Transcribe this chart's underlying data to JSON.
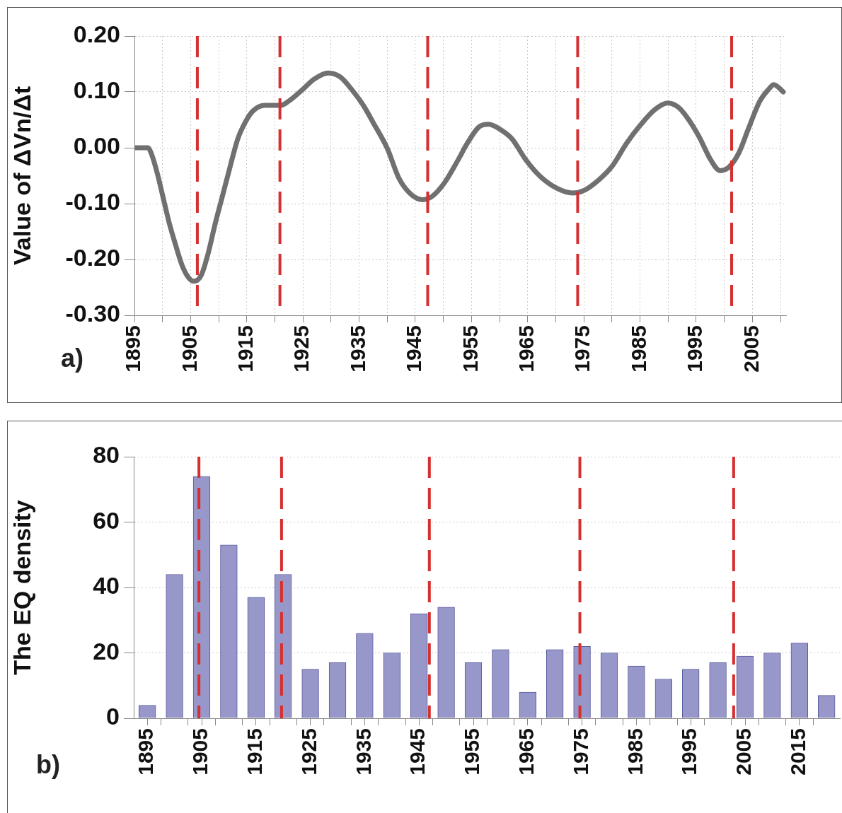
{
  "chart_data": [
    {
      "type": "line",
      "ylabel": "Value of ΔVn/Δt",
      "annotations": [
        "a)"
      ],
      "color": "#707070",
      "grid": true,
      "x": [
        1895,
        1897.4,
        1898.1,
        1899.1,
        1900.1,
        1901.2,
        1902.3,
        1903.5,
        1904.6,
        1905.6,
        1906.9,
        1908.1,
        1909.4,
        1910.6,
        1911.9,
        1913.4,
        1914.8,
        1916.1,
        1918.2,
        1921.1,
        1922.4,
        1924.9,
        1927,
        1929.5,
        1931.6,
        1933.7,
        1935.8,
        1937.5,
        1940,
        1942.1,
        1944.2,
        1946.3,
        1948,
        1950.1,
        1952.6,
        1954.25,
        1956.3,
        1958,
        1960.1,
        1962.2,
        1964.7,
        1967.2,
        1970.1,
        1973,
        1975.1,
        1977.6,
        1980.1,
        1982.6,
        1985.1,
        1987.6,
        1989.9,
        1991.75,
        1993.4,
        1995.5,
        1997.6,
        1999.25,
        2000.9,
        2002.6,
        2004.25,
        2006.3,
        2008,
        2008.8,
        2010.5
      ],
      "values": [
        0,
        0,
        -0.013,
        -0.047,
        -0.089,
        -0.135,
        -0.173,
        -0.211,
        -0.232,
        -0.239,
        -0.228,
        -0.19,
        -0.135,
        -0.089,
        -0.039,
        0.016,
        0.047,
        0.066,
        0.076,
        0.076,
        0.083,
        0.104,
        0.123,
        0.134,
        0.127,
        0.104,
        0.075,
        0.045,
        -0.001,
        -0.055,
        -0.083,
        -0.093,
        -0.087,
        -0.064,
        -0.022,
        0.008,
        0.037,
        0.042,
        0.033,
        0.016,
        -0.022,
        -0.051,
        -0.072,
        -0.081,
        -0.076,
        -0.058,
        -0.032,
        0.008,
        0.041,
        0.068,
        0.08,
        0.073,
        0.054,
        0.02,
        -0.022,
        -0.041,
        -0.034,
        -0.009,
        0.033,
        0.083,
        0.106,
        0.113,
        0.1
      ],
      "xlim": [
        1895,
        2011
      ],
      "xticks": [
        1895,
        {
          "value": 1900,
          "label": null
        },
        1905,
        {
          "value": 1910,
          "label": null
        },
        1915,
        {
          "value": 1920,
          "label": null
        },
        1925,
        {
          "value": 1930,
          "label": null
        },
        1935,
        {
          "value": 1940,
          "label": null
        },
        1945,
        {
          "value": 1950,
          "label": null
        },
        1955,
        {
          "value": 1960,
          "label": null
        },
        1965,
        {
          "value": 1970,
          "label": null
        },
        1975,
        {
          "value": 1980,
          "label": null
        },
        1985,
        {
          "value": 1990,
          "label": null
        },
        1995,
        {
          "value": 2000,
          "label": null
        },
        2005,
        {
          "value": 2010,
          "label": null
        }
      ],
      "ylim": [
        -0.3,
        0.2
      ],
      "yticks": [
        {
          "value": 0.2,
          "label": "0.20"
        },
        {
          "value": 0.1,
          "label": "0.10"
        },
        {
          "value": 0,
          "label": "0.00"
        },
        {
          "value": -0.1,
          "label": "-0.10"
        },
        {
          "value": -0.2,
          "label": "-0.20"
        },
        {
          "value": -0.3,
          "label": "-0.30"
        }
      ],
      "ref_lines": [
        {
          "axis": "x",
          "value": 1906.2,
          "color": "#d62f2f",
          "line_style": "dashed"
        },
        {
          "axis": "x",
          "value": 1920.9,
          "color": "#d62f2f",
          "line_style": "dashed"
        },
        {
          "axis": "x",
          "value": 1947.2,
          "color": "#d62f2f",
          "line_style": "dashed"
        },
        {
          "axis": "x",
          "value": 1973.9,
          "color": "#d62f2f",
          "line_style": "dashed"
        },
        {
          "axis": "x",
          "value": 2001.3,
          "color": "#d62f2f",
          "line_style": "dashed"
        }
      ]
    },
    {
      "type": "bar",
      "ylabel": "The EQ density",
      "annotations": [
        "b)"
      ],
      "color": "#9797c9",
      "grid": "y",
      "x": [
        1895,
        1900,
        1905,
        1910,
        1915,
        1920,
        1925,
        1930,
        1935,
        1940,
        1945,
        1950,
        1955,
        1960,
        1965,
        1970,
        1975,
        1980,
        1985,
        1990,
        1995,
        2000,
        2005,
        2010,
        2015,
        2020
      ],
      "values": [
        4,
        44,
        74,
        53,
        37,
        44,
        15,
        17,
        26,
        20,
        32,
        34,
        17,
        21,
        8,
        21,
        22,
        20,
        16,
        12,
        15,
        17,
        19,
        20,
        23,
        7
      ],
      "xlim": [
        1892.5,
        2022.5
      ],
      "xticks": [
        1895,
        {
          "value": 1897.5,
          "label": null
        },
        {
          "value": 1902.5,
          "label": null
        },
        1905,
        {
          "value": 1907.5,
          "label": null
        },
        {
          "value": 1912.5,
          "label": null
        },
        1915,
        {
          "value": 1917.5,
          "label": null
        },
        {
          "value": 1922.5,
          "label": null
        },
        1925,
        {
          "value": 1927.5,
          "label": null
        },
        {
          "value": 1932.5,
          "label": null
        },
        1935,
        {
          "value": 1937.5,
          "label": null
        },
        {
          "value": 1942.5,
          "label": null
        },
        1945,
        {
          "value": 1947.5,
          "label": null
        },
        {
          "value": 1952.5,
          "label": null
        },
        1955,
        {
          "value": 1957.5,
          "label": null
        },
        {
          "value": 1962.5,
          "label": null
        },
        1965,
        {
          "value": 1967.5,
          "label": null
        },
        {
          "value": 1972.5,
          "label": null
        },
        1975,
        {
          "value": 1977.5,
          "label": null
        },
        {
          "value": 1982.5,
          "label": null
        },
        1985,
        {
          "value": 1987.5,
          "label": null
        },
        {
          "value": 1992.5,
          "label": null
        },
        1995,
        {
          "value": 1997.5,
          "label": null
        },
        {
          "value": 2002.5,
          "label": null
        },
        2005,
        {
          "value": 2007.5,
          "label": null
        },
        {
          "value": 2012.5,
          "label": null
        },
        2015,
        {
          "value": 2017.5,
          "label": null
        }
      ],
      "ylim": [
        0,
        80
      ],
      "yticks": [
        0,
        20,
        40,
        60,
        80
      ],
      "ref_lines": [
        {
          "axis": "x",
          "value": 1904.5,
          "color": "#d62f2f",
          "line_style": "dashed"
        },
        {
          "axis": "x",
          "value": 1919.7,
          "color": "#d62f2f",
          "line_style": "dashed"
        },
        {
          "axis": "x",
          "value": 1946.9,
          "color": "#d62f2f",
          "line_style": "dashed"
        },
        {
          "axis": "x",
          "value": 1974.6,
          "color": "#d62f2f",
          "line_style": "dashed"
        },
        {
          "axis": "x",
          "value": 2002.9,
          "color": "#d62f2f",
          "line_style": "dashed"
        }
      ]
    }
  ]
}
